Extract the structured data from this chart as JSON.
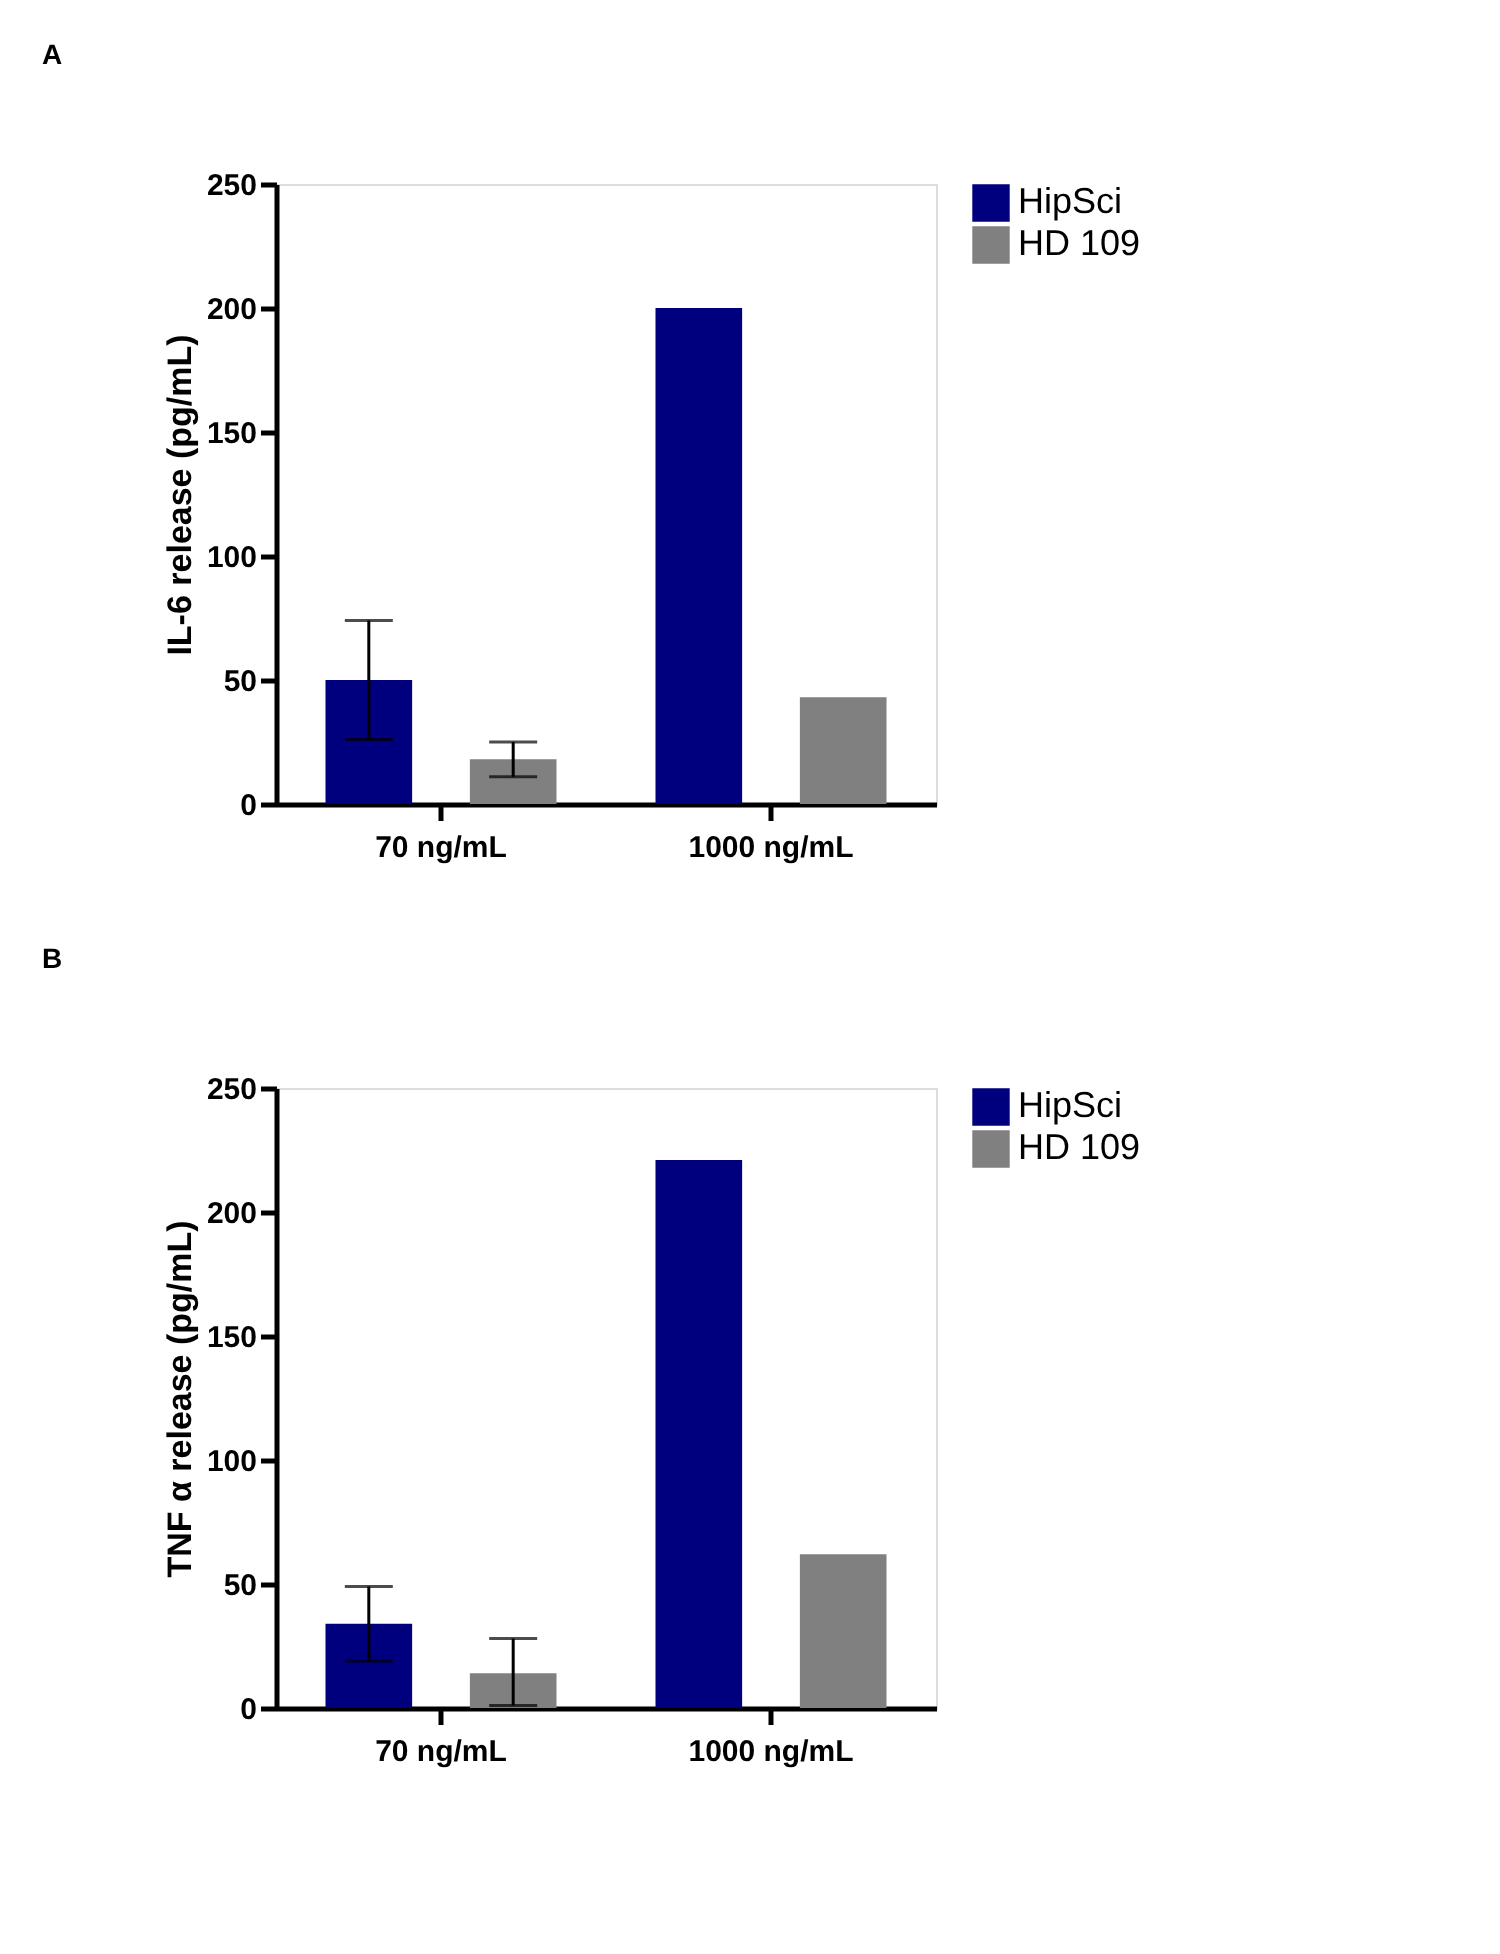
{
  "chart_data": [
    {
      "type": "bar",
      "title": "A",
      "ylabel": "IL-6 release (pg/mL)",
      "categories": [
        "70 ng/mL",
        "1000 ng/mL"
      ],
      "series": [
        {
          "name": "HipSci",
          "color": "#00007f",
          "values": [
            50,
            200
          ],
          "errors": [
            24,
            null
          ]
        },
        {
          "name": "HD 109",
          "color": "#808080",
          "values": [
            18,
            43
          ],
          "errors": [
            7,
            null
          ]
        }
      ],
      "ylim": [
        0,
        250
      ],
      "yticks": [
        0,
        50,
        100,
        150,
        200,
        250
      ],
      "grid": false,
      "legend": "top right"
    },
    {
      "type": "bar",
      "title": "B",
      "ylabel": "TNF α release (pg/mL)",
      "categories": [
        "70 ng/mL",
        "1000 ng/mL"
      ],
      "series": [
        {
          "name": "HipSci",
          "color": "#00007f",
          "values": [
            34,
            221
          ],
          "errors": [
            15,
            null
          ]
        },
        {
          "name": "HD 109",
          "color": "#808080",
          "values": [
            14,
            62
          ],
          "errors": [
            [
              1,
              28
            ],
            null
          ]
        }
      ],
      "ylim": [
        0,
        250
      ],
      "yticks": [
        0,
        50,
        100,
        150,
        200,
        250
      ],
      "grid": false,
      "legend": "top right"
    }
  ]
}
